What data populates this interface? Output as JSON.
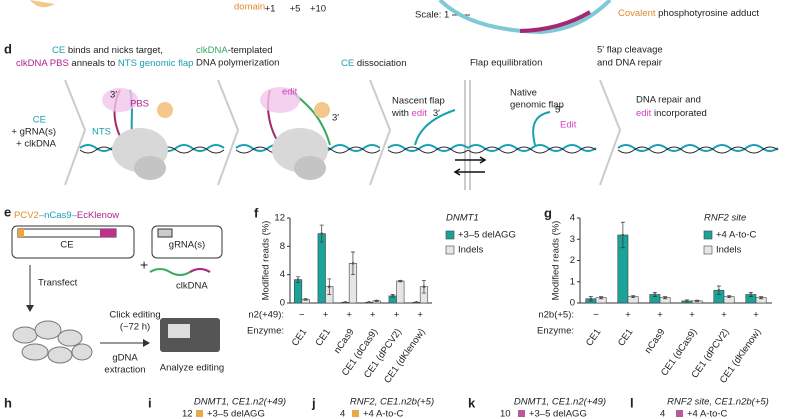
{
  "top": {
    "domain": "domain",
    "positions": [
      "+1",
      "+5",
      "+10"
    ],
    "scale": "Scale: 1",
    "adduct_a": "Covalent",
    "adduct_b": " phosphotyrosine adduct"
  },
  "panel_d": {
    "label": "d",
    "step1": [
      "CE",
      " binds and nicks target,",
      "clkDNA PBS",
      " anneals to ",
      "NTS genomic flap"
    ],
    "step2": [
      "clkDNA",
      "-templated",
      "DNA polymerization"
    ],
    "step3": [
      "CE",
      " dissociation"
    ],
    "step4": "Flap equilibration",
    "step5": [
      "5′ flap cleavage",
      "and DNA repair"
    ],
    "inputs": [
      "CE",
      "+ gRNA(s)",
      "+ clkDNA"
    ],
    "marks1": [
      "3′",
      "PBS",
      "NTS"
    ],
    "marks2": [
      "edit",
      "3′"
    ],
    "nascent": [
      "Nascent flap",
      "with ",
      "edit",
      "3′"
    ],
    "native": [
      "Native",
      "genomic flap",
      "5′",
      "Edit"
    ],
    "repair": [
      "DNA repair and",
      "edit",
      " incorporated"
    ]
  },
  "panel_e": {
    "label": "e",
    "construct": [
      "PCV2",
      "–nCas9–",
      "EcKlenow"
    ],
    "ce": "CE",
    "grna": "gRNA(s)",
    "plus": "+",
    "clkdna": "clkDNA",
    "transfect": "Transfect",
    "click": [
      "Click editing",
      "(~72 h)"
    ],
    "gdna": [
      "gDNA",
      "extraction"
    ],
    "analyze": "Analyze editing"
  },
  "chart_data": [
    {
      "type": "bar",
      "label": "f",
      "title": "DNMT1",
      "ylabel": "Modified reads (%)",
      "categories": [
        "CE1",
        "CE1",
        "nCas9",
        "CE1 (dCas9)",
        "CE1 (dPCV2)",
        "CE1 (dKlenow)"
      ],
      "row_label": "n2(+49):",
      "row_values": [
        "−",
        "+",
        "+",
        "+",
        "+",
        "+"
      ],
      "enzyme_label": "Enzyme:",
      "ylim": [
        0,
        12
      ],
      "yticks": [
        0,
        4,
        8,
        12
      ],
      "series": [
        {
          "name": "+3–5 delAGG",
          "color": "#1aa39a",
          "values": [
            3.3,
            9.8,
            0.1,
            0.1,
            1.0,
            0.1
          ],
          "errors": [
            0.4,
            1.2,
            0.05,
            0.05,
            0.2,
            0.05
          ]
        },
        {
          "name": "Indels",
          "color": "#e6e6e6",
          "values": [
            0.5,
            2.3,
            5.6,
            0.3,
            3.1,
            2.3
          ],
          "errors": [
            0.1,
            1.1,
            1.6,
            0.1,
            0.1,
            0.9
          ]
        }
      ]
    },
    {
      "type": "bar",
      "label": "g",
      "title": "RNF2 site",
      "ylabel": "Modified reads (%)",
      "categories": [
        "CE1",
        "CE1",
        "nCas9",
        "CE1 (dCas9)",
        "CE1 (dPCV2)",
        "CE1 (dKlenow)"
      ],
      "row_label": "n2b(+5):",
      "row_values": [
        "−",
        "+",
        "+",
        "+",
        "+",
        "+"
      ],
      "enzyme_label": "Enzyme:",
      "ylim": [
        0,
        4
      ],
      "yticks": [
        0,
        1,
        2,
        3,
        4
      ],
      "series": [
        {
          "name": "+4 A-to-C",
          "color": "#1aa39a",
          "values": [
            0.2,
            3.2,
            0.4,
            0.1,
            0.6,
            0.4
          ],
          "errors": [
            0.1,
            0.6,
            0.1,
            0.05,
            0.2,
            0.1
          ]
        },
        {
          "name": "Indels",
          "color": "#e6e6e6",
          "values": [
            0.25,
            0.3,
            0.25,
            0.1,
            0.3,
            0.25
          ],
          "errors": [
            0.05,
            0.05,
            0.05,
            0.03,
            0.05,
            0.05
          ]
        }
      ]
    }
  ],
  "bottom": {
    "h": "h",
    "i": {
      "label": "i",
      "title": "DNMT1, CE1.n2(+49)",
      "tick": "12",
      "legend": "+3–5 delAGG"
    },
    "j": {
      "label": "j",
      "title": "RNF2, CE1.n2b(+5)",
      "tick": "4",
      "legend": "+4 A-to-C"
    },
    "k": {
      "label": "k",
      "title": "DNMT1, CE1.n2(+49)",
      "tick": "10",
      "legend": "+3–5 delAGG"
    },
    "l": {
      "label": "l",
      "title": "RNF2 site, CE1.n2b(+5)",
      "tick": "4",
      "legend": "+4 A-to-C"
    }
  }
}
